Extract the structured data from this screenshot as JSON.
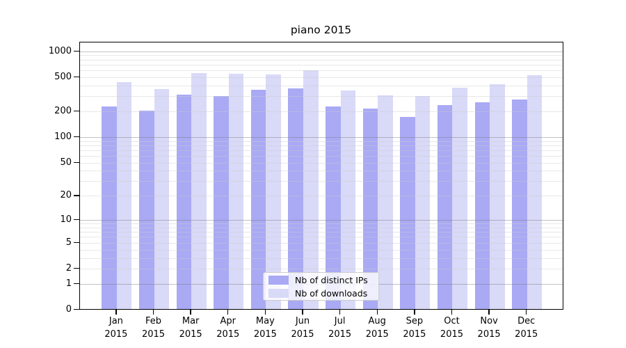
{
  "title": "piano 2015",
  "chart_data": {
    "type": "bar",
    "title": "piano 2015",
    "categories": [
      "Jan 2015",
      "Feb 2015",
      "Mar 2015",
      "Apr 2015",
      "May 2015",
      "Jun 2015",
      "Jul 2015",
      "Aug 2015",
      "Sep 2015",
      "Oct 2015",
      "Nov 2015",
      "Dec 2015"
    ],
    "series": [
      {
        "name": "Nb of distinct IPs",
        "color": "#a9a9f4",
        "values": [
          220,
          197,
          305,
          293,
          345,
          360,
          220,
          210,
          166,
          232,
          249,
          265
        ]
      },
      {
        "name": "Nb of downloads",
        "color": "#d9d9f8",
        "values": [
          430,
          355,
          540,
          530,
          528,
          585,
          340,
          298,
          292,
          370,
          404,
          512
        ]
      }
    ],
    "xlabel": "",
    "ylabel": "",
    "yscale": "symlog (log1p)",
    "ylim": [
      0,
      1275
    ],
    "y_ticks": [
      0,
      1,
      2,
      5,
      10,
      20,
      50,
      100,
      200,
      500,
      1000
    ],
    "y_major_gridlines": [
      1,
      10,
      100,
      1000
    ],
    "y_minor_gridlines": [
      2,
      3,
      4,
      5,
      6,
      7,
      8,
      9,
      20,
      30,
      40,
      50,
      60,
      70,
      80,
      90,
      200,
      300,
      400,
      500,
      600,
      700,
      800,
      900
    ],
    "grid": true,
    "legend_position": "lower center",
    "background_color": "#ffffff"
  }
}
